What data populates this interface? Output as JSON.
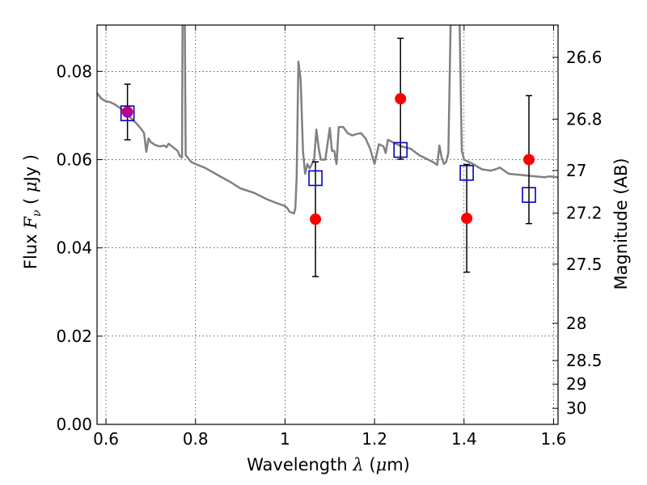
{
  "chart_data": {
    "type": "scatter",
    "xlabel": {
      "prefix": "Wavelength",
      "symbol": "λ",
      "unit_open": " (",
      "unit_mu": "μ",
      "unit_rest": "m)"
    },
    "ylabel": {
      "prefix": "Flux",
      "symbol": "F",
      "subscript": "ν",
      "unit_open": "( ",
      "unit_mu": "μ",
      "unit_rest": "Jy )"
    },
    "y2label": "Magnitude (AB)",
    "xlim": [
      0.58,
      1.61
    ],
    "ylim": [
      0.0,
      0.0905
    ],
    "grid": true,
    "x_ticks": [
      {
        "value": 0.6,
        "label": "0.6"
      },
      {
        "value": 0.8,
        "label": "0.8"
      },
      {
        "value": 1.0,
        "label": "1"
      },
      {
        "value": 1.2,
        "label": "1.2"
      },
      {
        "value": 1.4,
        "label": "1.4"
      },
      {
        "value": 1.6,
        "label": "1.6"
      }
    ],
    "y_ticks": [
      {
        "value": 0.0,
        "label": "0.00"
      },
      {
        "value": 0.02,
        "label": "0.02"
      },
      {
        "value": 0.04,
        "label": "0.04"
      },
      {
        "value": 0.06,
        "label": "0.06"
      },
      {
        "value": 0.08,
        "label": "0.08"
      }
    ],
    "y2_ticks": [
      {
        "mag": 26.6,
        "label": "26.6"
      },
      {
        "mag": 26.8,
        "label": "26.8"
      },
      {
        "mag": 27.0,
        "label": "27"
      },
      {
        "mag": 27.2,
        "label": "27.2"
      },
      {
        "mag": 27.5,
        "label": "27.5"
      },
      {
        "mag": 28.0,
        "label": "28"
      },
      {
        "mag": 28.5,
        "label": "28.5"
      },
      {
        "mag": 29.0,
        "label": "29"
      },
      {
        "mag": 30.0,
        "label": "30"
      }
    ],
    "series": [
      {
        "kind": "line",
        "color": "#808080",
        "points": [
          [
            0.58,
            0.0751
          ],
          [
            0.59,
            0.0738
          ],
          [
            0.6,
            0.0732
          ],
          [
            0.61,
            0.073
          ],
          [
            0.62,
            0.0725
          ],
          [
            0.63,
            0.0718
          ],
          [
            0.64,
            0.071
          ],
          [
            0.65,
            0.07
          ],
          [
            0.66,
            0.069
          ],
          [
            0.67,
            0.068
          ],
          [
            0.68,
            0.0668
          ],
          [
            0.685,
            0.066
          ],
          [
            0.69,
            0.0618
          ],
          [
            0.695,
            0.0648
          ],
          [
            0.7,
            0.064
          ],
          [
            0.71,
            0.0633
          ],
          [
            0.72,
            0.063
          ],
          [
            0.73,
            0.0632
          ],
          [
            0.735,
            0.0628
          ],
          [
            0.74,
            0.0636
          ],
          [
            0.75,
            0.0628
          ],
          [
            0.76,
            0.062
          ],
          [
            0.765,
            0.0608
          ],
          [
            0.77,
            0.0605
          ],
          [
            0.771,
            0.091
          ],
          [
            0.776,
            0.091
          ],
          [
            0.778,
            0.061
          ],
          [
            0.79,
            0.0595
          ],
          [
            0.8,
            0.059
          ],
          [
            0.82,
            0.0582
          ],
          [
            0.85,
            0.0565
          ],
          [
            0.88,
            0.0548
          ],
          [
            0.9,
            0.0535
          ],
          [
            0.93,
            0.0525
          ],
          [
            0.96,
            0.051
          ],
          [
            0.98,
            0.0502
          ],
          [
            1.0,
            0.0495
          ],
          [
            1.005,
            0.049
          ],
          [
            1.01,
            0.0482
          ],
          [
            1.02,
            0.0478
          ],
          [
            1.023,
            0.049
          ],
          [
            1.026,
            0.056
          ],
          [
            1.03,
            0.0822
          ],
          [
            1.035,
            0.078
          ],
          [
            1.04,
            0.062
          ],
          [
            1.045,
            0.0568
          ],
          [
            1.05,
            0.059
          ],
          [
            1.055,
            0.058
          ],
          [
            1.06,
            0.059
          ],
          [
            1.065,
            0.06
          ],
          [
            1.07,
            0.0668
          ],
          [
            1.075,
            0.0628
          ],
          [
            1.08,
            0.06
          ],
          [
            1.09,
            0.06
          ],
          [
            1.1,
            0.0672
          ],
          [
            1.105,
            0.062
          ],
          [
            1.11,
            0.062
          ],
          [
            1.115,
            0.059
          ],
          [
            1.12,
            0.0674
          ],
          [
            1.13,
            0.0674
          ],
          [
            1.14,
            0.066
          ],
          [
            1.15,
            0.0655
          ],
          [
            1.16,
            0.0658
          ],
          [
            1.17,
            0.066
          ],
          [
            1.18,
            0.0648
          ],
          [
            1.19,
            0.0625
          ],
          [
            1.2,
            0.059
          ],
          [
            1.21,
            0.0635
          ],
          [
            1.22,
            0.063
          ],
          [
            1.225,
            0.0615
          ],
          [
            1.23,
            0.0645
          ],
          [
            1.24,
            0.064
          ],
          [
            1.25,
            0.0635
          ],
          [
            1.26,
            0.063
          ],
          [
            1.28,
            0.0625
          ],
          [
            1.3,
            0.061
          ],
          [
            1.32,
            0.06
          ],
          [
            1.33,
            0.0595
          ],
          [
            1.34,
            0.0588
          ],
          [
            1.345,
            0.0632
          ],
          [
            1.35,
            0.0605
          ],
          [
            1.355,
            0.059
          ],
          [
            1.36,
            0.0595
          ],
          [
            1.365,
            0.0615
          ],
          [
            1.37,
            0.091
          ],
          [
            1.39,
            0.091
          ],
          [
            1.395,
            0.062
          ],
          [
            1.4,
            0.06
          ],
          [
            1.42,
            0.059
          ],
          [
            1.44,
            0.0578
          ],
          [
            1.46,
            0.0575
          ],
          [
            1.47,
            0.0578
          ],
          [
            1.48,
            0.0582
          ],
          [
            1.5,
            0.0568
          ],
          [
            1.53,
            0.0565
          ],
          [
            1.56,
            0.0562
          ],
          [
            1.58,
            0.056
          ],
          [
            1.59,
            0.0562
          ],
          [
            1.61,
            0.056
          ]
        ]
      },
      {
        "kind": "points",
        "marker": "circle",
        "color": "#ff0000",
        "points": [
          {
            "x": 0.648,
            "y": 0.0708,
            "yerr": 0.0063
          },
          {
            "x": 1.068,
            "y": 0.0465,
            "yerr": 0.013
          },
          {
            "x": 1.258,
            "y": 0.0738,
            "yerr": 0.0137
          },
          {
            "x": 1.406,
            "y": 0.0467,
            "yerr": 0.0122
          },
          {
            "x": 1.545,
            "y": 0.06,
            "yerr": 0.0145
          }
        ]
      },
      {
        "kind": "points",
        "marker": "square",
        "color": "#0000cc",
        "points": [
          {
            "x": 0.648,
            "y": 0.0705
          },
          {
            "x": 1.068,
            "y": 0.0558
          },
          {
            "x": 1.258,
            "y": 0.0622
          },
          {
            "x": 1.406,
            "y": 0.057
          },
          {
            "x": 1.545,
            "y": 0.052
          }
        ]
      }
    ]
  }
}
